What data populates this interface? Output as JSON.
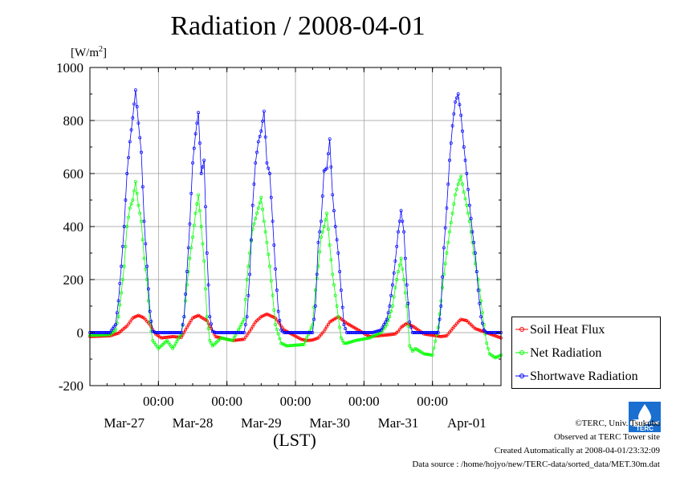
{
  "chart_data": {
    "type": "line",
    "title": "Radiation / 2008-04-01",
    "unit": "W/m",
    "unit_superscript": "2",
    "xlabel": "(LST)",
    "ylim": [
      -200,
      1000
    ],
    "yticks": [
      "1000",
      "800",
      "600",
      "400",
      "200",
      "0",
      "-200"
    ],
    "ytick_values": [
      1000,
      800,
      600,
      400,
      200,
      0,
      -200
    ],
    "x_hour_range": [
      -120,
      24
    ],
    "midnight_labels": [
      "00:00",
      "00:00",
      "00:00",
      "00:00",
      "00:00"
    ],
    "midnight_hours": [
      -96,
      -72,
      -48,
      -24,
      0
    ],
    "date_labels": [
      "Mar-27",
      "Mar-28",
      "Mar-29",
      "Mar-30",
      "Mar-31",
      "Apr-01"
    ],
    "date_hours": [
      -108,
      -84,
      -60,
      -36,
      -12,
      12
    ],
    "grid": true,
    "legend_position": "lower-right outside",
    "series": [
      {
        "name": "Soil Heat Flux",
        "color": "#ff0000",
        "x": [
          -120,
          -113,
          -110,
          -107,
          -105,
          -103,
          -101,
          -99,
          -97,
          -95,
          -91,
          -88,
          -86,
          -84,
          -82,
          -79,
          -76,
          -70,
          -66,
          -64,
          -62,
          -60,
          -58,
          -55,
          -52,
          -46,
          -44,
          -42,
          -40,
          -38,
          -36,
          -33,
          -30,
          -22,
          -19,
          -17,
          -15,
          -13,
          -12,
          -11,
          -9,
          -7,
          -3,
          0,
          3,
          5,
          7,
          9,
          10,
          12,
          15,
          24
        ],
        "y": [
          -15,
          -12,
          -2,
          25,
          55,
          65,
          55,
          30,
          -5,
          -20,
          -15,
          -18,
          20,
          55,
          65,
          45,
          -15,
          -30,
          -25,
          5,
          40,
          60,
          70,
          55,
          10,
          -25,
          -30,
          -28,
          -20,
          5,
          40,
          60,
          35,
          -15,
          -12,
          -10,
          -8,
          -5,
          5,
          20,
          35,
          25,
          -5,
          -10,
          -15,
          -12,
          15,
          40,
          50,
          45,
          15,
          -20
        ]
      },
      {
        "name": "Net Radiation",
        "color": "#00ff00",
        "x": [
          -120,
          -113,
          -111,
          -110,
          -109,
          -108,
          -107,
          -106,
          -105,
          -104,
          -103,
          -102,
          -101,
          -100,
          -99,
          -98,
          -96,
          -95,
          -93,
          -91,
          -88,
          -87,
          -86,
          -85,
          -84,
          -83,
          -82,
          -81,
          -80,
          -79,
          -78,
          -77,
          -74,
          -70,
          -66,
          -65,
          -64,
          -63,
          -62,
          -61,
          -60,
          -59,
          -58,
          -57,
          -56,
          -55,
          -53,
          -51,
          -45,
          -42,
          -41,
          -40,
          -39,
          -38,
          -37,
          -36,
          -35,
          -34,
          -33,
          -32,
          -31,
          -30,
          -27,
          -22,
          -18,
          -16,
          -15,
          -14,
          -13,
          -12,
          -11,
          -10,
          -9,
          -8,
          -7,
          -6,
          -3,
          0,
          2,
          3,
          4,
          5,
          6,
          7,
          8,
          9,
          10,
          11,
          12,
          13,
          14,
          15,
          16,
          17,
          18,
          19,
          20,
          22,
          23,
          24
        ],
        "y": [
          -10,
          -8,
          10,
          60,
          150,
          250,
          400,
          470,
          500,
          570,
          480,
          420,
          280,
          200,
          40,
          -30,
          -60,
          -50,
          -30,
          -60,
          -5,
          60,
          180,
          280,
          360,
          450,
          520,
          400,
          270,
          60,
          -30,
          -50,
          -20,
          -30,
          50,
          200,
          300,
          390,
          430,
          470,
          510,
          420,
          340,
          250,
          140,
          30,
          -40,
          -50,
          -45,
          30,
          160,
          250,
          360,
          400,
          450,
          330,
          220,
          140,
          60,
          -20,
          -40,
          -40,
          -30,
          -20,
          0,
          30,
          60,
          100,
          170,
          230,
          280,
          200,
          100,
          -50,
          -70,
          -60,
          -80,
          -85,
          20,
          120,
          220,
          300,
          380,
          450,
          520,
          560,
          590,
          530,
          480,
          420,
          340,
          260,
          200,
          120,
          30,
          -40,
          -80,
          -95,
          -90,
          -85
        ]
      },
      {
        "name": "Shortwave Radiation",
        "color": "#0000ff",
        "x": [
          -120,
          -113,
          -111,
          -110,
          -109,
          -108,
          -107,
          -106,
          -105,
          -104,
          -103,
          -102,
          -101,
          -100,
          -99,
          -98,
          -97,
          -96,
          -90,
          -88,
          -87,
          -86,
          -85,
          -84,
          -83,
          -82,
          -81,
          -80,
          -79,
          -78,
          -77,
          -76,
          -66,
          -65,
          -64,
          -63,
          -62,
          -61,
          -60,
          -59,
          -58,
          -57,
          -56,
          -55,
          -54,
          -53,
          -52,
          -42,
          -41,
          -40,
          -39,
          -38,
          -37,
          -36,
          -35,
          -34,
          -33,
          -32,
          -31,
          -30,
          -29,
          -27,
          -21,
          -18,
          -16,
          -15,
          -14,
          -13,
          -12,
          -11,
          -10,
          -9,
          -8,
          -7,
          -6,
          2,
          3,
          4,
          5,
          6,
          7,
          8,
          9,
          10,
          11,
          12,
          13,
          14,
          15,
          16,
          17,
          18,
          19,
          20,
          22,
          24
        ],
        "y": [
          0,
          0,
          30,
          120,
          250,
          400,
          600,
          720,
          810,
          915,
          790,
          680,
          420,
          250,
          80,
          5,
          0,
          0,
          0,
          0,
          60,
          230,
          410,
          640,
          750,
          830,
          600,
          650,
          300,
          60,
          5,
          0,
          0,
          60,
          220,
          480,
          640,
          720,
          760,
          835,
          640,
          600,
          420,
          240,
          80,
          10,
          0,
          0,
          100,
          340,
          420,
          610,
          620,
          730,
          520,
          400,
          300,
          160,
          30,
          0,
          0,
          0,
          0,
          10,
          50,
          100,
          180,
          270,
          380,
          460,
          380,
          180,
          40,
          0,
          0,
          0,
          100,
          320,
          470,
          650,
          780,
          870,
          900,
          820,
          700,
          600,
          480,
          380,
          300,
          160,
          60,
          10,
          0,
          0,
          0,
          0
        ]
      }
    ]
  },
  "footer": {
    "copyright": "©TERC, Univ. Tsukuba",
    "observed": "Observed at TERC Tower site",
    "created": "Created Automatically at 2008-04-01/23:32:09",
    "source": "Data source : /home/hojyo/new/TERC-data/sorted_data/MET.30m.dat"
  },
  "logo_text": "TERC"
}
